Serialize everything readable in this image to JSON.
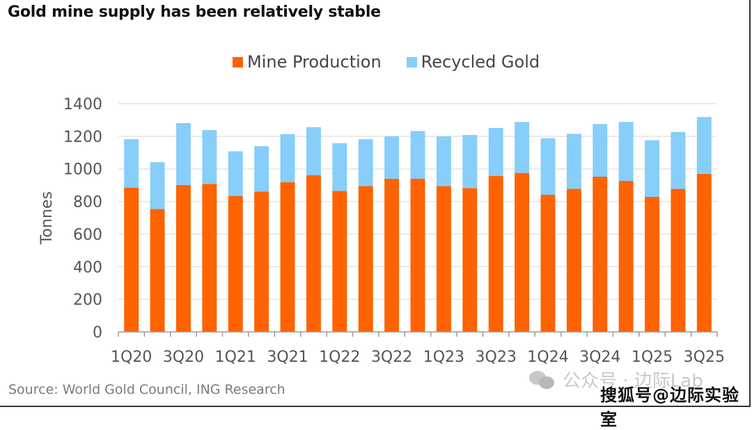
{
  "chart_data": {
    "type": "bar",
    "stacked": true,
    "title": "Gold mine supply has been relatively stable",
    "xlabel": "",
    "ylabel": "Tonnes",
    "ylim": [
      0,
      1400
    ],
    "yticks": [
      0,
      200,
      400,
      600,
      800,
      1000,
      1200,
      1400
    ],
    "grid": true,
    "legend_position": "top-center",
    "categories": [
      "1Q20",
      "2Q20",
      "3Q20",
      "4Q20",
      "1Q21",
      "2Q21",
      "3Q21",
      "4Q21",
      "1Q22",
      "2Q22",
      "3Q22",
      "4Q22",
      "1Q23",
      "2Q23",
      "3Q23",
      "4Q23",
      "1Q24",
      "2Q24",
      "3Q24",
      "4Q24",
      "1Q25",
      "2Q25",
      "3Q25"
    ],
    "tick_labels": [
      "1Q20",
      "3Q20",
      "1Q21",
      "3Q21",
      "1Q22",
      "3Q22",
      "1Q23",
      "3Q23",
      "1Q24",
      "3Q24",
      "1Q25",
      "3Q25"
    ],
    "series": [
      {
        "name": "Mine Production",
        "color": "#ff6200",
        "values": [
          885,
          754,
          901,
          908,
          834,
          860,
          919,
          962,
          865,
          895,
          939,
          939,
          895,
          882,
          956,
          975,
          841,
          878,
          952,
          926,
          828,
          877,
          969
        ]
      },
      {
        "name": "Recycled Gold",
        "color": "#87cefa",
        "values": [
          297,
          287,
          380,
          330,
          274,
          279,
          294,
          294,
          293,
          287,
          261,
          293,
          304,
          326,
          295,
          313,
          347,
          337,
          323,
          362,
          348,
          349,
          349
        ]
      }
    ]
  },
  "source": "Source: World Gold Council, ING Research",
  "watermark": {
    "line1": "公众号 · 边际Lab",
    "line2": "搜狐号@边际实验室"
  }
}
